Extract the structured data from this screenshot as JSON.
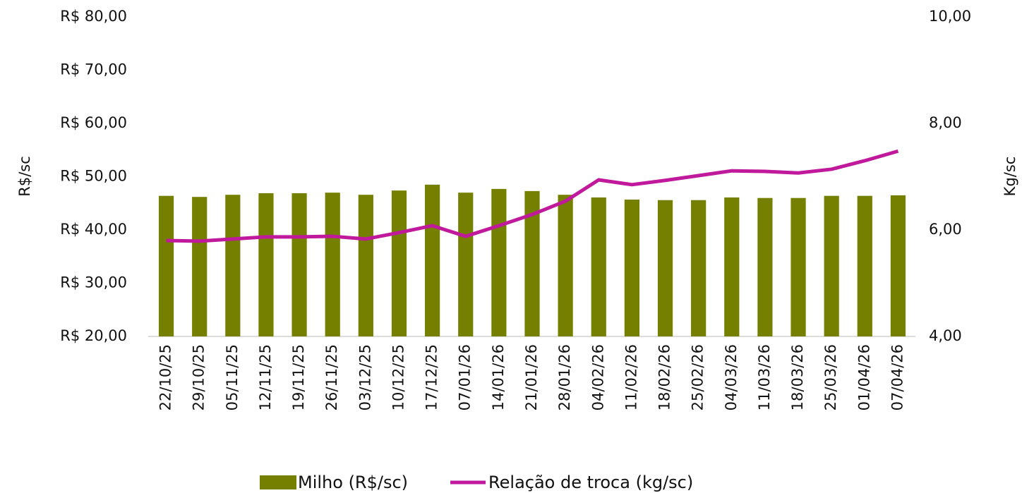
{
  "chart_data": {
    "type": "bar-line",
    "y_label": "R$/sc",
    "y2_label": "Kg/sc",
    "categories": [
      "22/10/25",
      "29/10/25",
      "05/11/25",
      "12/11/25",
      "19/11/25",
      "26/11/25",
      "03/12/25",
      "10/12/25",
      "17/12/25",
      "07/01/26",
      "14/01/26",
      "21/01/26",
      "28/01/26",
      "04/02/26",
      "11/02/26",
      "18/02/26",
      "25/02/26",
      "04/03/26",
      "11/03/26",
      "18/03/26",
      "25/03/26",
      "01/04/26",
      "07/04/26"
    ],
    "series": [
      {
        "name": "Milho (R$/sc)",
        "kind": "bar",
        "color": "#768000",
        "values": [
          46.4,
          46.2,
          46.6,
          46.9,
          46.9,
          47.0,
          46.6,
          47.4,
          48.5,
          47.0,
          47.7,
          47.3,
          46.6,
          46.1,
          45.7,
          45.6,
          45.6,
          46.1,
          46.0,
          46.0,
          46.4,
          46.4,
          46.5
        ]
      },
      {
        "name": "Relação de troca (kg/sc)",
        "kind": "line",
        "axis": "y2",
        "color": "#c0199b",
        "values": [
          5.8,
          5.79,
          5.83,
          5.87,
          5.87,
          5.88,
          5.83,
          5.95,
          6.08,
          5.88,
          6.08,
          6.29,
          6.54,
          6.94,
          6.85,
          6.93,
          7.02,
          7.11,
          7.1,
          7.07,
          7.14,
          7.3,
          7.48
        ]
      }
    ],
    "ylim": [
      20,
      80
    ],
    "yticks": [
      {
        "value": 20,
        "label": "R$ 20,00"
      },
      {
        "value": 30,
        "label": "R$ 30,00"
      },
      {
        "value": 40,
        "label": "R$ 40,00"
      },
      {
        "value": 50,
        "label": "R$ 50,00"
      },
      {
        "value": 60,
        "label": "R$ 60,00"
      },
      {
        "value": 70,
        "label": "R$ 70,00"
      },
      {
        "value": 80,
        "label": "R$ 80,00"
      }
    ],
    "y2lim": [
      4,
      10
    ],
    "y2ticks": [
      {
        "value": 4,
        "label": "4,00"
      },
      {
        "value": 6,
        "label": "6,00"
      },
      {
        "value": 8,
        "label": "8,00"
      },
      {
        "value": 10,
        "label": "10,00"
      }
    ],
    "grid": false
  }
}
